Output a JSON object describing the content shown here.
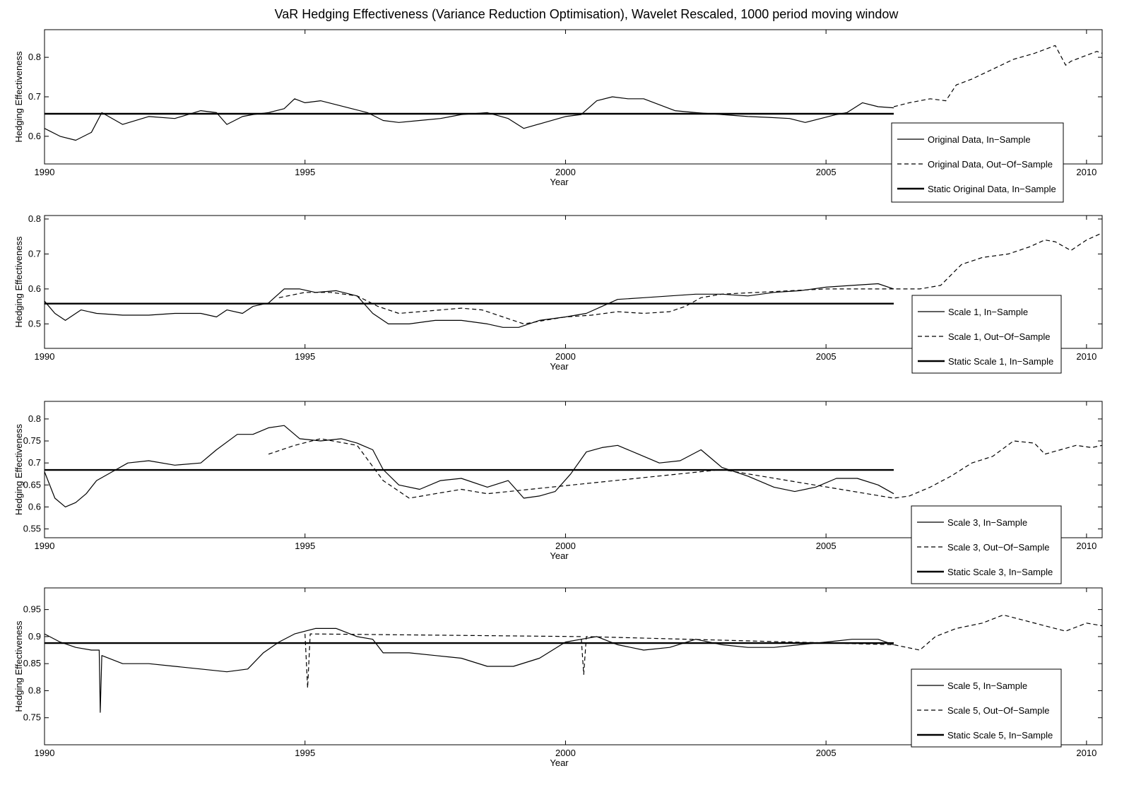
{
  "figure": {
    "title": "VaR Hedging Effectiveness (Variance Reduction Optimisation), Wavelet Rescaled, 1000 period moving window"
  },
  "chart_data": [
    {
      "type": "line",
      "xlabel": "Year",
      "ylabel": "Hedging Effectiveness",
      "xlim": [
        1990,
        2010.3
      ],
      "ylim": [
        0.53,
        0.87
      ],
      "xticks": [
        1990,
        1995,
        2000,
        2005,
        2010
      ],
      "yticks": [
        0.6,
        0.7,
        0.8
      ],
      "legend_position": "lower-right",
      "series": [
        {
          "name": "Original Data, In−Sample",
          "style": "solid",
          "x": [
            1990,
            1990.3,
            1990.6,
            1990.9,
            1991.1,
            1991.5,
            1992,
            1992.5,
            1993,
            1993.3,
            1993.5,
            1993.8,
            1994,
            1994.3,
            1994.6,
            1994.8,
            1995,
            1995.3,
            1995.6,
            1995.9,
            1996.2,
            1996.5,
            1996.8,
            1997.2,
            1997.6,
            1998,
            1998.5,
            1998.9,
            1999.2,
            1999.6,
            2000,
            2000.3,
            2000.6,
            2000.9,
            2001.2,
            2001.5,
            2001.8,
            2002.1,
            2002.5,
            2003,
            2003.5,
            2003.9,
            2004.3,
            2004.6,
            2004.9,
            2005.2,
            2005.4,
            2005.7,
            2006,
            2006.3
          ],
          "y": [
            0.62,
            0.6,
            0.59,
            0.61,
            0.66,
            0.63,
            0.65,
            0.645,
            0.665,
            0.66,
            0.63,
            0.65,
            0.655,
            0.66,
            0.67,
            0.695,
            0.685,
            0.69,
            0.68,
            0.67,
            0.66,
            0.64,
            0.635,
            0.64,
            0.645,
            0.655,
            0.66,
            0.645,
            0.62,
            0.635,
            0.65,
            0.655,
            0.69,
            0.7,
            0.695,
            0.695,
            0.68,
            0.665,
            0.66,
            0.655,
            0.65,
            0.648,
            0.645,
            0.635,
            0.645,
            0.655,
            0.66,
            0.685,
            0.675,
            0.672
          ]
        },
        {
          "name": "Original Data, Out−Of−Sample",
          "style": "dashed",
          "x": [
            2006.3,
            2006.6,
            2007,
            2007.3,
            2007.5,
            2007.8,
            2008.2,
            2008.6,
            2009,
            2009.4,
            2009.6,
            2009.7,
            2009.9,
            2010.2,
            2010.3
          ],
          "y": [
            0.675,
            0.685,
            0.695,
            0.69,
            0.73,
            0.745,
            0.77,
            0.795,
            0.81,
            0.83,
            0.78,
            0.79,
            0.8,
            0.815,
            0.81
          ]
        },
        {
          "name": "Static Original Data, In−Sample",
          "style": "thick",
          "x": [
            1990,
            2006.3
          ],
          "y": [
            0.657,
            0.657
          ]
        }
      ]
    },
    {
      "type": "line",
      "xlabel": "Year",
      "ylabel": "Hedging Effectiveness",
      "xlim": [
        1990,
        2010.3
      ],
      "ylim": [
        0.43,
        0.81
      ],
      "xticks": [
        1990,
        1995,
        2000,
        2005,
        2010
      ],
      "yticks": [
        0.5,
        0.6,
        0.7,
        0.8
      ],
      "legend_position": "lower-right",
      "series": [
        {
          "name": "Scale 1, In−Sample",
          "style": "solid",
          "x": [
            1990,
            1990.2,
            1990.4,
            1990.7,
            1991,
            1991.5,
            1992,
            1992.5,
            1993,
            1993.3,
            1993.5,
            1993.8,
            1994,
            1994.3,
            1994.6,
            1994.9,
            1995.2,
            1995.6,
            1996,
            1996.3,
            1996.6,
            1997,
            1997.5,
            1998,
            1998.5,
            1998.8,
            1999.1,
            1999.5,
            2000,
            2000.4,
            2000.7,
            2001,
            2001.5,
            2002,
            2002.5,
            2003,
            2003.5,
            2004,
            2004.5,
            2005,
            2005.5,
            2006,
            2006.3
          ],
          "y": [
            0.565,
            0.53,
            0.51,
            0.54,
            0.53,
            0.525,
            0.525,
            0.53,
            0.53,
            0.52,
            0.54,
            0.53,
            0.55,
            0.56,
            0.6,
            0.6,
            0.59,
            0.595,
            0.58,
            0.53,
            0.5,
            0.5,
            0.51,
            0.51,
            0.5,
            0.49,
            0.49,
            0.51,
            0.52,
            0.53,
            0.55,
            0.57,
            0.575,
            0.58,
            0.585,
            0.585,
            0.58,
            0.59,
            0.595,
            0.605,
            0.61,
            0.615,
            0.6
          ]
        },
        {
          "name": "Scale 1, Out−Of−Sample",
          "style": "dashed",
          "x": [
            1994.5,
            1995,
            1995.5,
            1996,
            1996.4,
            1996.8,
            1997.2,
            1997.6,
            1998,
            1998.4,
            1998.8,
            1999.2,
            1999.6,
            2000,
            2000.5,
            2001,
            2001.5,
            2002,
            2002.3,
            2002.6,
            2003,
            2005,
            2006.3,
            2006.8,
            2007.2,
            2007.6,
            2008,
            2008.5,
            2008.9,
            2009.2,
            2009.4,
            2009.7,
            2010,
            2010.3
          ],
          "y": [
            0.575,
            0.59,
            0.59,
            0.58,
            0.55,
            0.53,
            0.535,
            0.54,
            0.545,
            0.54,
            0.52,
            0.5,
            0.51,
            0.52,
            0.525,
            0.535,
            0.53,
            0.535,
            0.55,
            0.575,
            0.585,
            0.6,
            0.6,
            0.6,
            0.61,
            0.67,
            0.69,
            0.7,
            0.72,
            0.74,
            0.735,
            0.71,
            0.74,
            0.76
          ]
        },
        {
          "name": "Static Scale 1, In−Sample",
          "style": "thick",
          "x": [
            1990,
            2006.3
          ],
          "y": [
            0.558,
            0.558
          ]
        }
      ]
    },
    {
      "type": "line",
      "xlabel": "Year",
      "ylabel": "Hedging Effectiveness",
      "xlim": [
        1990,
        2010.3
      ],
      "ylim": [
        0.53,
        0.84
      ],
      "xticks": [
        1990,
        1995,
        2000,
        2005,
        2010
      ],
      "yticks": [
        0.55,
        0.6,
        0.65,
        0.7,
        0.75,
        0.8
      ],
      "legend_position": "lower-right",
      "series": [
        {
          "name": "Scale 3, In−Sample",
          "style": "solid",
          "x": [
            1990,
            1990.2,
            1990.4,
            1990.6,
            1990.8,
            1991,
            1991.3,
            1991.6,
            1992,
            1992.5,
            1993,
            1993.3,
            1993.7,
            1994,
            1994.3,
            1994.6,
            1994.9,
            1995.3,
            1995.7,
            1996,
            1996.3,
            1996.5,
            1996.8,
            1997.2,
            1997.6,
            1998,
            1998.5,
            1998.9,
            1999.2,
            1999.5,
            1999.8,
            2000.1,
            2000.4,
            2000.7,
            2001,
            2001.4,
            2001.8,
            2002.2,
            2002.6,
            2003,
            2003.5,
            2004,
            2004.4,
            2004.8,
            2005.2,
            2005.6,
            2006,
            2006.3
          ],
          "y": [
            0.68,
            0.62,
            0.6,
            0.61,
            0.63,
            0.66,
            0.68,
            0.7,
            0.705,
            0.695,
            0.7,
            0.73,
            0.765,
            0.765,
            0.78,
            0.785,
            0.755,
            0.75,
            0.755,
            0.745,
            0.73,
            0.685,
            0.65,
            0.64,
            0.66,
            0.665,
            0.645,
            0.66,
            0.62,
            0.625,
            0.635,
            0.675,
            0.725,
            0.735,
            0.74,
            0.72,
            0.7,
            0.705,
            0.73,
            0.69,
            0.67,
            0.645,
            0.635,
            0.645,
            0.665,
            0.665,
            0.65,
            0.63
          ]
        },
        {
          "name": "Scale 3, Out−Of−Sample",
          "style": "dashed",
          "x": [
            1994.3,
            1994.8,
            1995.3,
            1996,
            1996.5,
            1997,
            1997.5,
            1998,
            1998.5,
            2003,
            2006.3,
            2006.6,
            2007,
            2007.4,
            2007.8,
            2008.2,
            2008.6,
            2009,
            2009.2,
            2009.5,
            2009.8,
            2010.1,
            2010.3
          ],
          "y": [
            0.72,
            0.74,
            0.755,
            0.74,
            0.66,
            0.62,
            0.63,
            0.64,
            0.63,
            0.685,
            0.62,
            0.625,
            0.645,
            0.67,
            0.7,
            0.715,
            0.75,
            0.745,
            0.72,
            0.73,
            0.74,
            0.735,
            0.74
          ]
        },
        {
          "name": "Static Scale 3, In−Sample",
          "style": "thick",
          "x": [
            1990,
            2006.3
          ],
          "y": [
            0.684,
            0.684
          ]
        }
      ]
    },
    {
      "type": "line",
      "xlabel": "Year",
      "ylabel": "Hedging Effectiveness",
      "xlim": [
        1990,
        2010.3
      ],
      "ylim": [
        0.7,
        0.99
      ],
      "xticks": [
        1990,
        1995,
        2000,
        2005,
        2010
      ],
      "yticks": [
        0.75,
        0.8,
        0.85,
        0.9,
        0.95
      ],
      "legend_position": "lower-right",
      "series": [
        {
          "name": "Scale 5, In−Sample",
          "style": "solid",
          "x": [
            1990,
            1990.3,
            1990.6,
            1990.9,
            1991.05,
            1991.07,
            1991.1,
            1991.5,
            1992,
            1992.5,
            1993,
            1993.5,
            1993.9,
            1994.2,
            1994.5,
            1994.8,
            1995.2,
            1995.6,
            1996,
            1996.3,
            1996.5,
            1997,
            1997.5,
            1998,
            1998.5,
            1999,
            1999.5,
            2000,
            2000.3,
            2000.6,
            2001,
            2001.5,
            2002,
            2002.5,
            2003,
            2003.5,
            2004,
            2004.5,
            2005,
            2005.5,
            2006,
            2006.3
          ],
          "y": [
            0.905,
            0.89,
            0.88,
            0.875,
            0.875,
            0.76,
            0.865,
            0.85,
            0.85,
            0.845,
            0.84,
            0.835,
            0.84,
            0.87,
            0.89,
            0.905,
            0.915,
            0.915,
            0.9,
            0.895,
            0.87,
            0.87,
            0.865,
            0.86,
            0.845,
            0.845,
            0.86,
            0.89,
            0.895,
            0.9,
            0.885,
            0.875,
            0.88,
            0.895,
            0.885,
            0.88,
            0.88,
            0.885,
            0.89,
            0.895,
            0.895,
            0.885
          ]
        },
        {
          "name": "Scale 5, Out−Of−Sample",
          "style": "dashed",
          "x": [
            1995,
            1995.05,
            1995.1,
            2000.3,
            2000.35,
            2000.4,
            2006.3,
            2006.8,
            2007.1,
            2007.5,
            2008,
            2008.4,
            2008.8,
            2009.2,
            2009.6,
            2010,
            2010.3
          ],
          "y": [
            0.905,
            0.805,
            0.905,
            0.9,
            0.83,
            0.9,
            0.885,
            0.875,
            0.9,
            0.915,
            0.925,
            0.94,
            0.93,
            0.92,
            0.91,
            0.925,
            0.92
          ]
        },
        {
          "name": "Static Scale 5, In−Sample",
          "style": "thick",
          "x": [
            1990,
            2006.3
          ],
          "y": [
            0.888,
            0.888
          ]
        }
      ]
    }
  ]
}
